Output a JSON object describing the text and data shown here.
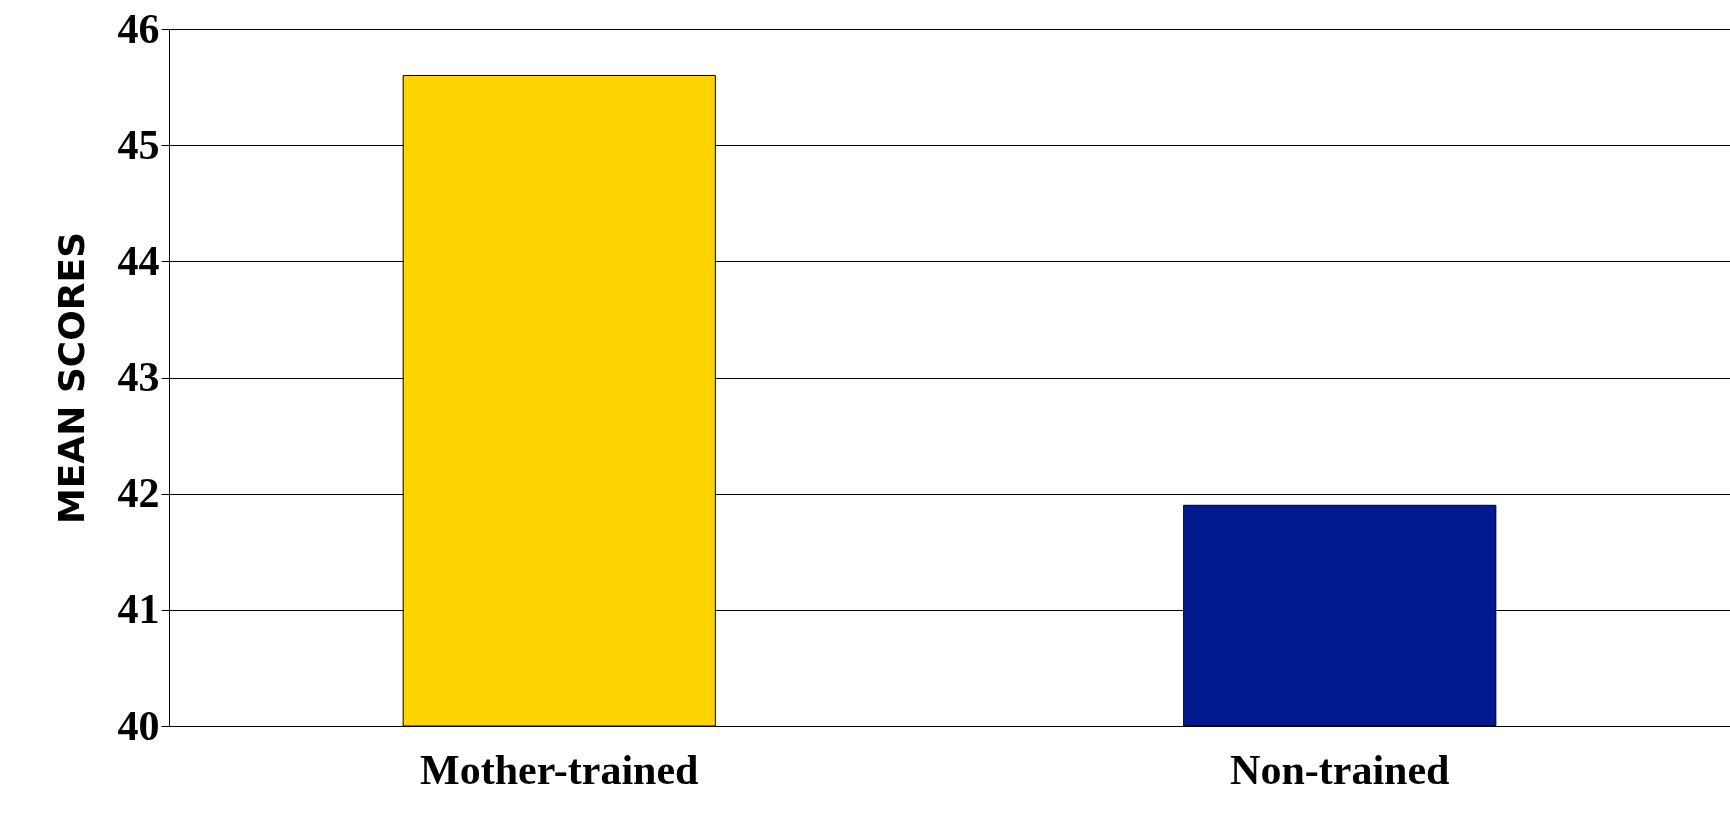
{
  "chart_data": {
    "type": "bar",
    "ylabel": "MEAN SCORES",
    "categories": [
      "Mother-trained",
      "Non-trained"
    ],
    "values": [
      45.6,
      41.9
    ],
    "colors": [
      "#fdd300",
      "#021a8f"
    ],
    "ylim": [
      40,
      46
    ],
    "yticks": [
      40,
      41,
      42,
      43,
      44,
      45,
      46
    ],
    "grid": "y"
  }
}
